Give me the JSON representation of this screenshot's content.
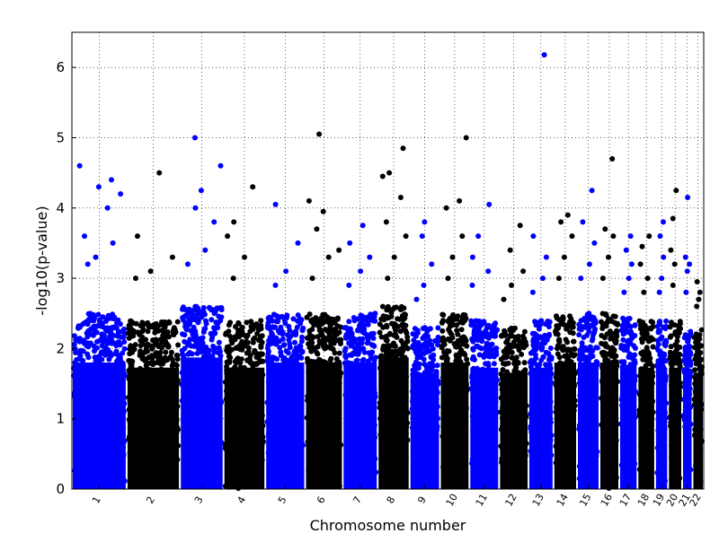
{
  "chart_data": {
    "type": "scatter",
    "title": "",
    "xlabel": "Chromosome number",
    "ylabel": "-log10(p-value)",
    "ylim": [
      0,
      6.5
    ],
    "yticks": [
      "0",
      "1",
      "2",
      "3",
      "4",
      "5",
      "6"
    ],
    "grid": true,
    "colors": {
      "odd": "#0000ff",
      "even": "#000000"
    },
    "chromosomes": [
      {
        "label": "1",
        "ceiling": 2.5,
        "top_hits": [
          3.2,
          3.3,
          3.5,
          3.6,
          4.0,
          4.2,
          4.3,
          4.4,
          4.6
        ]
      },
      {
        "label": "2",
        "ceiling": 2.4,
        "top_hits": [
          3.0,
          3.1,
          3.3,
          3.6,
          4.5
        ]
      },
      {
        "label": "3",
        "ceiling": 2.6,
        "top_hits": [
          3.2,
          3.4,
          3.8,
          4.0,
          4.25,
          4.6,
          5.0
        ]
      },
      {
        "label": "4",
        "ceiling": 2.4,
        "top_hits": [
          3.0,
          3.3,
          3.6,
          3.8,
          4.3
        ]
      },
      {
        "label": "5",
        "ceiling": 2.5,
        "top_hits": [
          2.9,
          3.1,
          3.5,
          4.05
        ]
      },
      {
        "label": "6",
        "ceiling": 2.5,
        "top_hits": [
          3.0,
          3.3,
          3.4,
          3.7,
          3.95,
          4.1,
          5.05
        ]
      },
      {
        "label": "7",
        "ceiling": 2.5,
        "top_hits": [
          2.9,
          3.1,
          3.3,
          3.5,
          3.75
        ]
      },
      {
        "label": "8",
        "ceiling": 2.6,
        "top_hits": [
          3.0,
          3.3,
          3.6,
          3.8,
          4.15,
          4.45,
          4.5,
          4.85
        ]
      },
      {
        "label": "9",
        "ceiling": 2.3,
        "top_hits": [
          2.7,
          2.9,
          3.2,
          3.6,
          3.8
        ]
      },
      {
        "label": "10",
        "ceiling": 2.5,
        "top_hits": [
          3.0,
          3.3,
          3.6,
          4.0,
          4.1,
          5.0
        ]
      },
      {
        "label": "11",
        "ceiling": 2.4,
        "top_hits": [
          2.9,
          3.1,
          3.3,
          3.6,
          4.05
        ]
      },
      {
        "label": "12",
        "ceiling": 2.3,
        "top_hits": [
          2.7,
          2.9,
          3.1,
          3.4,
          3.75
        ]
      },
      {
        "label": "13",
        "ceiling": 2.4,
        "top_hits": [
          2.8,
          3.0,
          3.3,
          3.6,
          6.18
        ]
      },
      {
        "label": "14",
        "ceiling": 2.5,
        "top_hits": [
          3.0,
          3.3,
          3.6,
          3.8,
          3.9
        ]
      },
      {
        "label": "15",
        "ceiling": 2.5,
        "top_hits": [
          3.0,
          3.2,
          3.5,
          3.8,
          4.25
        ]
      },
      {
        "label": "16",
        "ceiling": 2.5,
        "top_hits": [
          3.0,
          3.3,
          3.6,
          3.7,
          4.7
        ]
      },
      {
        "label": "17",
        "ceiling": 2.45,
        "top_hits": [
          2.8,
          3.0,
          3.2,
          3.4,
          3.6
        ]
      },
      {
        "label": "18",
        "ceiling": 2.4,
        "top_hits": [
          2.8,
          3.0,
          3.2,
          3.45,
          3.6
        ]
      },
      {
        "label": "19",
        "ceiling": 2.4,
        "top_hits": [
          2.8,
          3.0,
          3.3,
          3.6,
          3.8
        ]
      },
      {
        "label": "20",
        "ceiling": 2.4,
        "top_hits": [
          2.9,
          3.2,
          3.4,
          3.85,
          4.25
        ]
      },
      {
        "label": "21",
        "ceiling": 2.3,
        "top_hits": [
          2.8,
          3.1,
          3.2,
          3.3,
          4.15
        ]
      },
      {
        "label": "22",
        "ceiling": 2.3,
        "top_hits": [
          2.6,
          2.7,
          2.8,
          2.95
        ]
      }
    ]
  }
}
